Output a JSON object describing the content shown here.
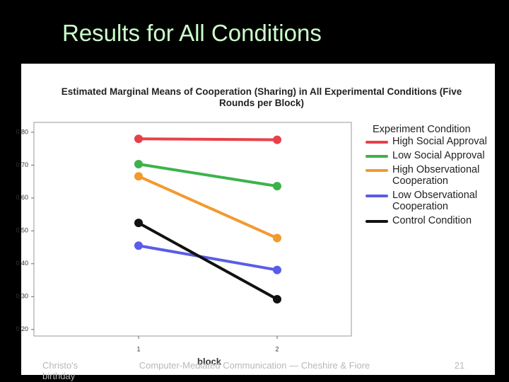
{
  "slide": {
    "title": "Results for All Conditions",
    "footer_left": "Christo's birthday",
    "footer_center": "Computer-Mediated Communication — Cheshire & Fiore",
    "page_number": "21"
  },
  "chart_data": {
    "type": "line",
    "title": "Estimated Marginal Means of Cooperation (Sharing) in All Experimental Conditions (Five Rounds per Block)",
    "x_label": "block",
    "categories": [
      "1",
      "2"
    ],
    "legend_title": "Experiment Condition",
    "series": [
      {
        "name": "High Social Approval",
        "color": "#e8404a",
        "values": [
          0.78,
          0.777
        ]
      },
      {
        "name": "Low Social Approval",
        "color": "#3cb34a",
        "values": [
          0.703,
          0.636
        ]
      },
      {
        "name": "High Observational Cooperation",
        "color": "#f29a2e",
        "values": [
          0.666,
          0.478
        ]
      },
      {
        "name": "Low Observational Cooperation",
        "color": "#5a5ce8",
        "values": [
          0.455,
          0.381
        ]
      },
      {
        "name": "Control Condition",
        "color": "#111111",
        "values": [
          0.524,
          0.292
        ]
      }
    ],
    "ylim": [
      0.18,
      0.83
    ],
    "yticks": [
      {
        "value": 0.2,
        "label": "0.20"
      },
      {
        "value": 0.3,
        "label": "0.30"
      },
      {
        "value": 0.4,
        "label": "0.40"
      },
      {
        "value": 0.5,
        "label": "0.50"
      },
      {
        "value": 0.6,
        "label": "0.60"
      },
      {
        "value": 0.7,
        "label": "0.70"
      },
      {
        "value": 0.8,
        "label": "0.80"
      }
    ]
  }
}
